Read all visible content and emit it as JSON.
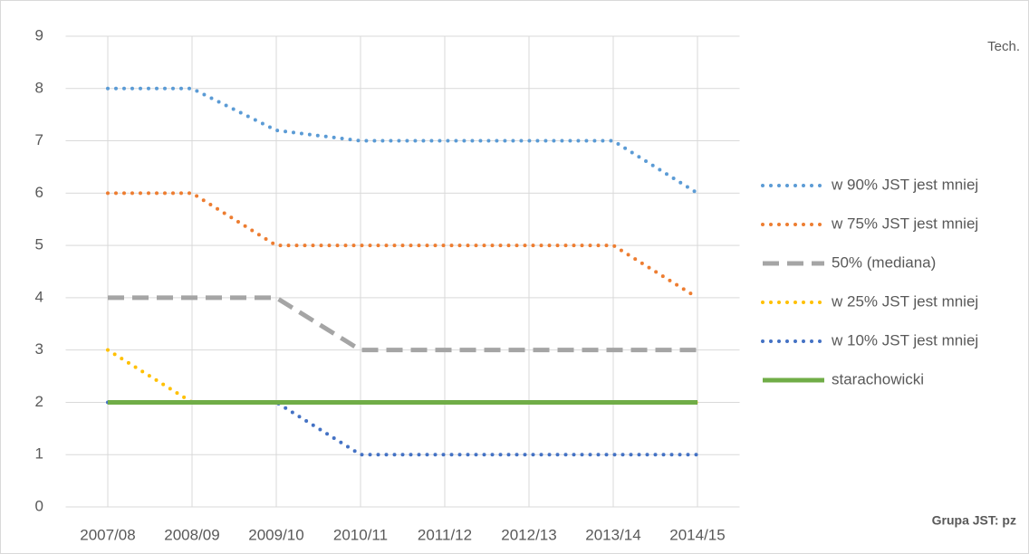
{
  "chart_data": {
    "type": "line",
    "categories": [
      "2007/08",
      "2008/09",
      "2009/10",
      "2010/11",
      "2011/12",
      "2012/13",
      "2013/14",
      "2014/15"
    ],
    "series": [
      {
        "name": "w 90% JST jest mniej",
        "color": "#5b9bd5",
        "style": "dotted",
        "values": [
          8,
          8,
          7.2,
          7,
          7,
          7,
          7,
          6
        ]
      },
      {
        "name": "w 75% JST jest mniej",
        "color": "#ed7d31",
        "style": "dotted",
        "values": [
          6,
          6,
          5,
          5,
          5,
          5,
          5,
          4
        ]
      },
      {
        "name": "50% (mediana)",
        "color": "#a5a5a5",
        "style": "dashed",
        "values": [
          4,
          4,
          4,
          3,
          3,
          3,
          3,
          3
        ]
      },
      {
        "name": "w 25% JST jest mniej",
        "color": "#ffc000",
        "style": "dotted",
        "values": [
          3,
          2,
          2,
          2,
          2,
          2,
          2,
          2
        ]
      },
      {
        "name": "w 10% JST jest mniej",
        "color": "#4472c4",
        "style": "dotted",
        "values": [
          2,
          2,
          2,
          1,
          1,
          1,
          1,
          1
        ]
      },
      {
        "name": "starachowicki",
        "color": "#70ad47",
        "style": "solid",
        "values": [
          2,
          2,
          2,
          2,
          2,
          2,
          2,
          2
        ]
      }
    ],
    "ylim": [
      0,
      9
    ],
    "yticks": [
      0,
      1,
      2,
      3,
      4,
      5,
      6,
      7,
      8,
      9
    ],
    "grid": true,
    "legend": "right",
    "annotations": [
      "Tech.",
      "Grupa JST: pz"
    ]
  }
}
